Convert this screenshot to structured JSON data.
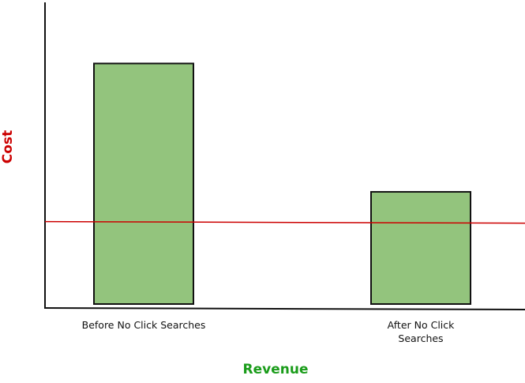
{
  "chart_data": {
    "type": "bar",
    "x_label": "Revenue",
    "y_label": "Cost",
    "categories": [
      "Before No Click Searches",
      "After No Click Searches"
    ],
    "values": [
      80,
      38
    ],
    "color": "#93c47d",
    "ylim": [
      0,
      100
    ],
    "reference_line": {
      "value": 28,
      "color": "#cc0000"
    }
  }
}
